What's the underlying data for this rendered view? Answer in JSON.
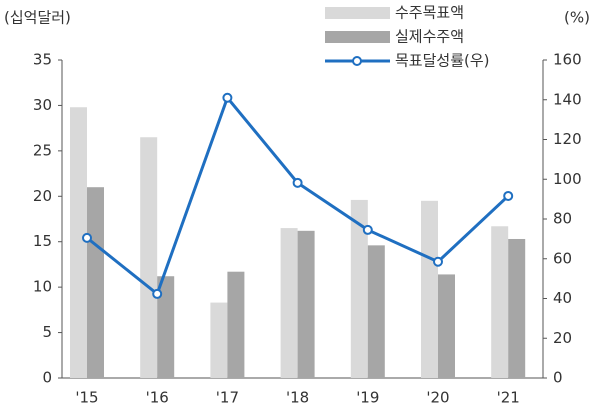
{
  "chart_data": {
    "type": "bar_line",
    "y_label": "(십억달러)",
    "y2_label": "(%)",
    "categories": [
      "'15",
      "'16",
      "'17",
      "'18",
      "'19",
      "'20",
      "'21"
    ],
    "series": [
      {
        "name": "수주목표액",
        "color": "#d9d9d9",
        "type": "bar",
        "values": [
          29.8,
          26.5,
          8.3,
          16.5,
          19.6,
          19.5,
          16.7
        ]
      },
      {
        "name": "실제수주액",
        "color": "#a6a6a6",
        "type": "bar",
        "values": [
          21.0,
          11.2,
          11.7,
          16.2,
          14.6,
          11.4,
          15.3
        ]
      },
      {
        "name": "목표달성률(우)",
        "color": "#1f6fc1",
        "type": "line",
        "axis": "y2",
        "values": [
          70.5,
          42.3,
          141,
          98.2,
          74.5,
          58.5,
          91.6
        ]
      }
    ],
    "ylim": [
      0,
      35
    ],
    "yticks": [
      0,
      5,
      10,
      15,
      20,
      25,
      30,
      35
    ],
    "y2lim": [
      0,
      160
    ],
    "y2ticks": [
      0,
      20,
      40,
      60,
      80,
      100,
      120,
      140,
      160
    ],
    "grid": false,
    "legend": "top"
  }
}
